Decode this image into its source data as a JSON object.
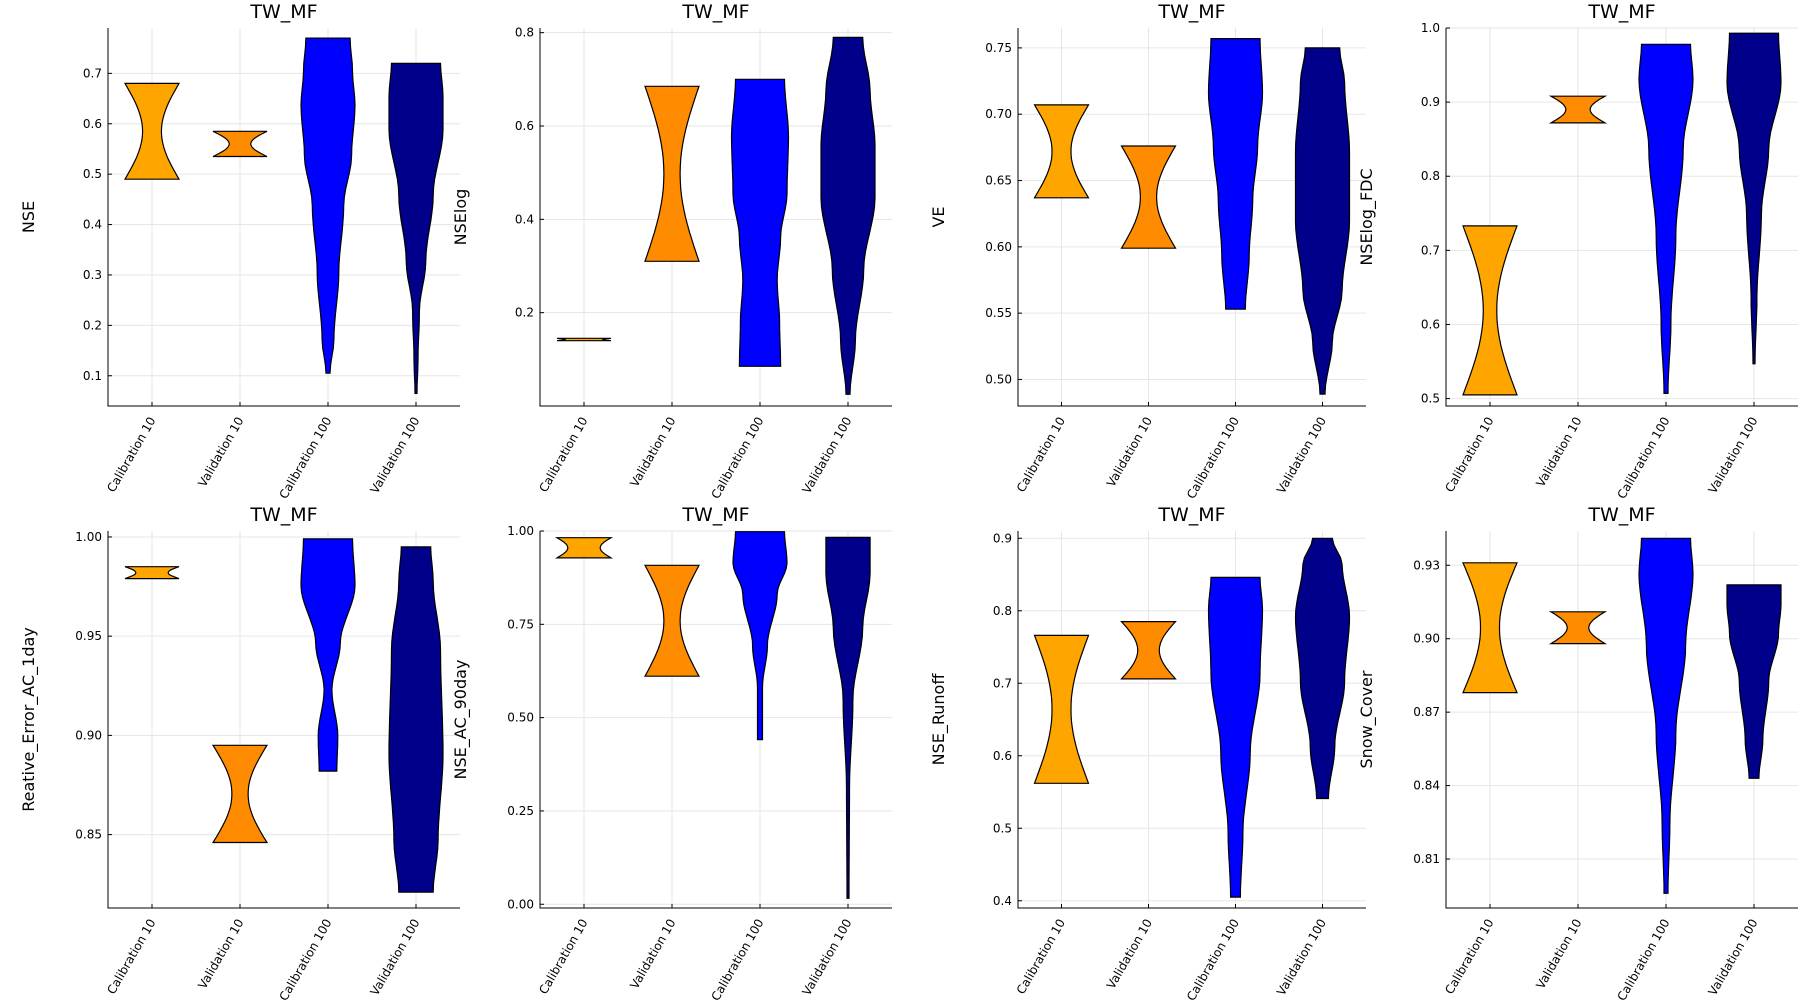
{
  "colors": {
    "calib10": "#FFA500",
    "valid10": "#FF8C00",
    "calib100": "#0000FF",
    "valid100": "#00008B"
  },
  "chart_data": [
    {
      "type": "violin",
      "title": "TW_MF",
      "ylabel": "NSE",
      "ylim": [
        0.04,
        0.79
      ],
      "yticks": [
        0.1,
        0.2,
        0.3,
        0.4,
        0.5,
        0.6,
        0.7
      ],
      "ytick_labels": [
        "0.1",
        "0.2",
        "0.3",
        "0.4",
        "0.5",
        "0.6",
        "0.7"
      ],
      "categories": [
        "Calibration 10",
        "Validation 10",
        "Calibration 100",
        "Validation 100"
      ],
      "violins": [
        {
          "min": 0.49,
          "max": 0.68,
          "kind": "hourglass",
          "waist": 0.35
        },
        {
          "min": 0.535,
          "max": 0.585,
          "kind": "hourglass",
          "waist": 0.4
        },
        {
          "min": 0.105,
          "max": 0.77,
          "kind": "shape",
          "w": [
            [
              0,
              0.04
            ],
            [
              0.1,
              0.12
            ],
            [
              0.3,
              0.22
            ],
            [
              0.5,
              0.32
            ],
            [
              0.65,
              0.48
            ],
            [
              0.8,
              0.55
            ],
            [
              0.9,
              0.5
            ],
            [
              1,
              0.45
            ]
          ]
        },
        {
          "min": 0.065,
          "max": 0.72,
          "kind": "shape",
          "w": [
            [
              0,
              0.02
            ],
            [
              0.1,
              0.04
            ],
            [
              0.25,
              0.07
            ],
            [
              0.4,
              0.2
            ],
            [
              0.6,
              0.35
            ],
            [
              0.8,
              0.55
            ],
            [
              0.9,
              0.55
            ],
            [
              1,
              0.5
            ]
          ]
        }
      ]
    },
    {
      "type": "violin",
      "title": "TW_MF",
      "ylabel": "NSElog",
      "ylim": [
        0.0,
        0.81
      ],
      "yticks": [
        0.2,
        0.4,
        0.6,
        0.8
      ],
      "ytick_labels": [
        "0.2",
        "0.4",
        "0.6",
        "0.8"
      ],
      "categories": [
        "Calibration 10",
        "Validation 10",
        "Calibration 100",
        "Validation 100"
      ],
      "violins": [
        {
          "min": 0.14,
          "max": 0.145,
          "kind": "hourglass",
          "waist": 0.7
        },
        {
          "min": 0.31,
          "max": 0.685,
          "kind": "hourglass",
          "waist": 0.3
        },
        {
          "min": 0.085,
          "max": 0.7,
          "kind": "shape",
          "w": [
            [
              0,
              0.42
            ],
            [
              0.15,
              0.4
            ],
            [
              0.3,
              0.35
            ],
            [
              0.45,
              0.42
            ],
            [
              0.6,
              0.55
            ],
            [
              0.8,
              0.58
            ],
            [
              1,
              0.5
            ]
          ]
        },
        {
          "min": 0.025,
          "max": 0.79,
          "kind": "shape",
          "w": [
            [
              0,
              0.04
            ],
            [
              0.15,
              0.15
            ],
            [
              0.35,
              0.32
            ],
            [
              0.55,
              0.55
            ],
            [
              0.7,
              0.55
            ],
            [
              0.85,
              0.45
            ],
            [
              1,
              0.3
            ]
          ]
        }
      ]
    },
    {
      "type": "violin",
      "title": "TW_MF",
      "ylabel": "VE",
      "ylim": [
        0.48,
        0.765
      ],
      "yticks": [
        0.5,
        0.55,
        0.6,
        0.65,
        0.7,
        0.75
      ],
      "ytick_labels": [
        "0.50",
        "0.55",
        "0.60",
        "0.65",
        "0.70",
        "0.75"
      ],
      "categories": [
        "Calibration 10",
        "Validation 10",
        "Calibration 100",
        "Validation 100"
      ],
      "violins": [
        {
          "min": 0.637,
          "max": 0.707,
          "kind": "hourglass",
          "waist": 0.35
        },
        {
          "min": 0.599,
          "max": 0.676,
          "kind": "hourglass",
          "waist": 0.3
        },
        {
          "min": 0.553,
          "max": 0.757,
          "kind": "shape",
          "w": [
            [
              0,
              0.2
            ],
            [
              0.2,
              0.28
            ],
            [
              0.4,
              0.35
            ],
            [
              0.6,
              0.45
            ],
            [
              0.8,
              0.55
            ],
            [
              1,
              0.5
            ]
          ]
        },
        {
          "min": 0.489,
          "max": 0.75,
          "kind": "shape",
          "w": [
            [
              0,
              0.05
            ],
            [
              0.15,
              0.2
            ],
            [
              0.3,
              0.4
            ],
            [
              0.5,
              0.55
            ],
            [
              0.7,
              0.55
            ],
            [
              0.9,
              0.45
            ],
            [
              1,
              0.35
            ]
          ]
        }
      ]
    },
    {
      "type": "violin",
      "title": "TW_MF",
      "ylabel": "NSElog_FDC",
      "ylim": [
        0.49,
        1.0
      ],
      "yticks": [
        0.5,
        0.6,
        0.7,
        0.8,
        0.9,
        1.0
      ],
      "ytick_labels": [
        "0.5",
        "0.6",
        "0.7",
        "0.8",
        "0.9",
        "1.0"
      ],
      "categories": [
        "Calibration 10",
        "Validation 10",
        "Calibration 100",
        "Validation 100"
      ],
      "violins": [
        {
          "min": 0.505,
          "max": 0.733,
          "kind": "hourglass",
          "waist": 0.25
        },
        {
          "min": 0.872,
          "max": 0.908,
          "kind": "hourglass",
          "waist": 0.45
        },
        {
          "min": 0.507,
          "max": 0.978,
          "kind": "shape",
          "w": [
            [
              0,
              0.04
            ],
            [
              0.2,
              0.1
            ],
            [
              0.45,
              0.2
            ],
            [
              0.7,
              0.35
            ],
            [
              0.9,
              0.55
            ],
            [
              1,
              0.5
            ]
          ]
        },
        {
          "min": 0.547,
          "max": 0.993,
          "kind": "shape",
          "w": [
            [
              0,
              0.02
            ],
            [
              0.2,
              0.06
            ],
            [
              0.45,
              0.15
            ],
            [
              0.65,
              0.3
            ],
            [
              0.85,
              0.55
            ],
            [
              1,
              0.5
            ]
          ]
        }
      ]
    },
    {
      "type": "violin",
      "title": "TW_MF",
      "ylabel": "Reative_Error_AC_1day",
      "ylim": [
        0.813,
        1.003
      ],
      "yticks": [
        0.85,
        0.9,
        0.95,
        1.0
      ],
      "ytick_labels": [
        "0.85",
        "0.90",
        "0.95",
        "1.00"
      ],
      "categories": [
        "Calibration 10",
        "Validation 10",
        "Calibration 100",
        "Validation 100"
      ],
      "violins": [
        {
          "min": 0.979,
          "max": 0.985,
          "kind": "hourglass",
          "waist": 0.6
        },
        {
          "min": 0.846,
          "max": 0.895,
          "kind": "hourglass",
          "waist": 0.3
        },
        {
          "min": 0.882,
          "max": 0.999,
          "kind": "shape",
          "w": [
            [
              0,
              0.18
            ],
            [
              0.15,
              0.2
            ],
            [
              0.35,
              0.08
            ],
            [
              0.55,
              0.25
            ],
            [
              0.8,
              0.55
            ],
            [
              1,
              0.5
            ]
          ]
        },
        {
          "min": 0.821,
          "max": 0.995,
          "kind": "shape",
          "w": [
            [
              0,
              0.35
            ],
            [
              0.15,
              0.45
            ],
            [
              0.4,
              0.55
            ],
            [
              0.7,
              0.5
            ],
            [
              0.9,
              0.35
            ],
            [
              1,
              0.3
            ]
          ]
        }
      ]
    },
    {
      "type": "violin",
      "title": "TW_MF",
      "ylabel": "NSE_AC_90day",
      "ylim": [
        -0.01,
        1.0
      ],
      "yticks": [
        0.0,
        0.25,
        0.5,
        0.75,
        1.0
      ],
      "ytick_labels": [
        "0.00",
        "0.25",
        "0.50",
        "0.75",
        "1.00"
      ],
      "categories": [
        "Calibration 10",
        "Validation 10",
        "Calibration 100",
        "Validation 100"
      ],
      "violins": [
        {
          "min": 0.928,
          "max": 0.982,
          "kind": "hourglass",
          "waist": 0.6
        },
        {
          "min": 0.611,
          "max": 0.908,
          "kind": "hourglass",
          "waist": 0.3
        },
        {
          "min": 0.441,
          "max": 0.998,
          "kind": "shape",
          "w": [
            [
              0,
              0.05
            ],
            [
              0.25,
              0.05
            ],
            [
              0.45,
              0.15
            ],
            [
              0.7,
              0.35
            ],
            [
              0.85,
              0.55
            ],
            [
              1,
              0.5
            ]
          ]
        },
        {
          "min": 0.016,
          "max": 0.983,
          "kind": "shape",
          "w": [
            [
              0,
              0.02
            ],
            [
              0.3,
              0.03
            ],
            [
              0.55,
              0.1
            ],
            [
              0.75,
              0.3
            ],
            [
              0.9,
              0.45
            ],
            [
              1,
              0.45
            ]
          ]
        }
      ]
    },
    {
      "type": "violin",
      "title": "TW_MF",
      "ylabel": "NSE_Runoff",
      "ylim": [
        0.39,
        0.91
      ],
      "yticks": [
        0.4,
        0.5,
        0.6,
        0.7,
        0.8,
        0.9
      ],
      "ytick_labels": [
        "0.4",
        "0.5",
        "0.6",
        "0.7",
        "0.8",
        "0.9"
      ],
      "categories": [
        "Calibration 10",
        "Validation 10",
        "Calibration 100",
        "Validation 100"
      ],
      "violins": [
        {
          "min": 0.562,
          "max": 0.766,
          "kind": "hourglass",
          "waist": 0.35
        },
        {
          "min": 0.706,
          "max": 0.785,
          "kind": "hourglass",
          "waist": 0.4
        },
        {
          "min": 0.405,
          "max": 0.846,
          "kind": "shape",
          "w": [
            [
              0,
              0.1
            ],
            [
              0.2,
              0.15
            ],
            [
              0.45,
              0.3
            ],
            [
              0.7,
              0.5
            ],
            [
              0.9,
              0.55
            ],
            [
              1,
              0.5
            ]
          ]
        },
        {
          "min": 0.541,
          "max": 0.9,
          "kind": "shape",
          "w": [
            [
              0,
              0.12
            ],
            [
              0.2,
              0.25
            ],
            [
              0.45,
              0.45
            ],
            [
              0.7,
              0.55
            ],
            [
              0.9,
              0.4
            ],
            [
              1,
              0.2
            ]
          ]
        }
      ]
    },
    {
      "type": "violin",
      "title": "TW_MF",
      "ylabel": "Snow_Cover",
      "ylim": [
        0.79,
        0.944
      ],
      "yticks": [
        0.81,
        0.84,
        0.87,
        0.9,
        0.93
      ],
      "ytick_labels": [
        "0.81",
        "0.84",
        "0.87",
        "0.90",
        "0.93"
      ],
      "categories": [
        "Calibration 10",
        "Validation 10",
        "Calibration 100",
        "Validation 100"
      ],
      "violins": [
        {
          "min": 0.878,
          "max": 0.931,
          "kind": "hourglass",
          "waist": 0.35
        },
        {
          "min": 0.898,
          "max": 0.911,
          "kind": "hourglass",
          "waist": 0.4
        },
        {
          "min": 0.796,
          "max": 0.941,
          "kind": "shape",
          "w": [
            [
              0,
              0.04
            ],
            [
              0.2,
              0.08
            ],
            [
              0.45,
              0.2
            ],
            [
              0.7,
              0.4
            ],
            [
              0.9,
              0.55
            ],
            [
              1,
              0.5
            ]
          ]
        },
        {
          "min": 0.843,
          "max": 0.922,
          "kind": "shape",
          "w": [
            [
              0,
              0.1
            ],
            [
              0.2,
              0.18
            ],
            [
              0.5,
              0.3
            ],
            [
              0.75,
              0.5
            ],
            [
              0.9,
              0.55
            ],
            [
              1,
              0.55
            ]
          ]
        }
      ]
    }
  ]
}
